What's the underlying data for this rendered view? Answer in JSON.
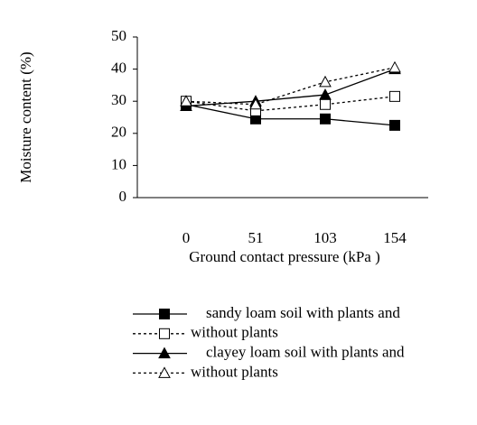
{
  "chart_data": {
    "type": "line",
    "x_label": "Ground contact pressure (kPa )",
    "y_label": "Moisture content (%)",
    "categories": [
      "0",
      "51",
      "103",
      "154"
    ],
    "ylim": [
      0,
      50
    ],
    "yticks": [
      0,
      10,
      20,
      30,
      40,
      50
    ],
    "series": [
      {
        "name": "sandy loam soil with plants and",
        "color": "#000000",
        "dashed": false,
        "marker": "square",
        "filled": true,
        "values": [
          29,
          24.5,
          24.5,
          22.5
        ]
      },
      {
        "name": "without plants",
        "color": "#000000",
        "dashed": true,
        "marker": "square",
        "filled": false,
        "values": [
          30,
          27,
          29,
          31.5
        ]
      },
      {
        "name": "clayey loam soil with plants and",
        "color": "#000000",
        "dashed": false,
        "marker": "triangle",
        "filled": true,
        "values": [
          28.5,
          30,
          32,
          40
        ]
      },
      {
        "name": "without plants",
        "color": "#000000",
        "dashed": true,
        "marker": "triangle",
        "filled": false,
        "values": [
          30,
          29,
          36,
          40.5
        ]
      }
    ]
  }
}
